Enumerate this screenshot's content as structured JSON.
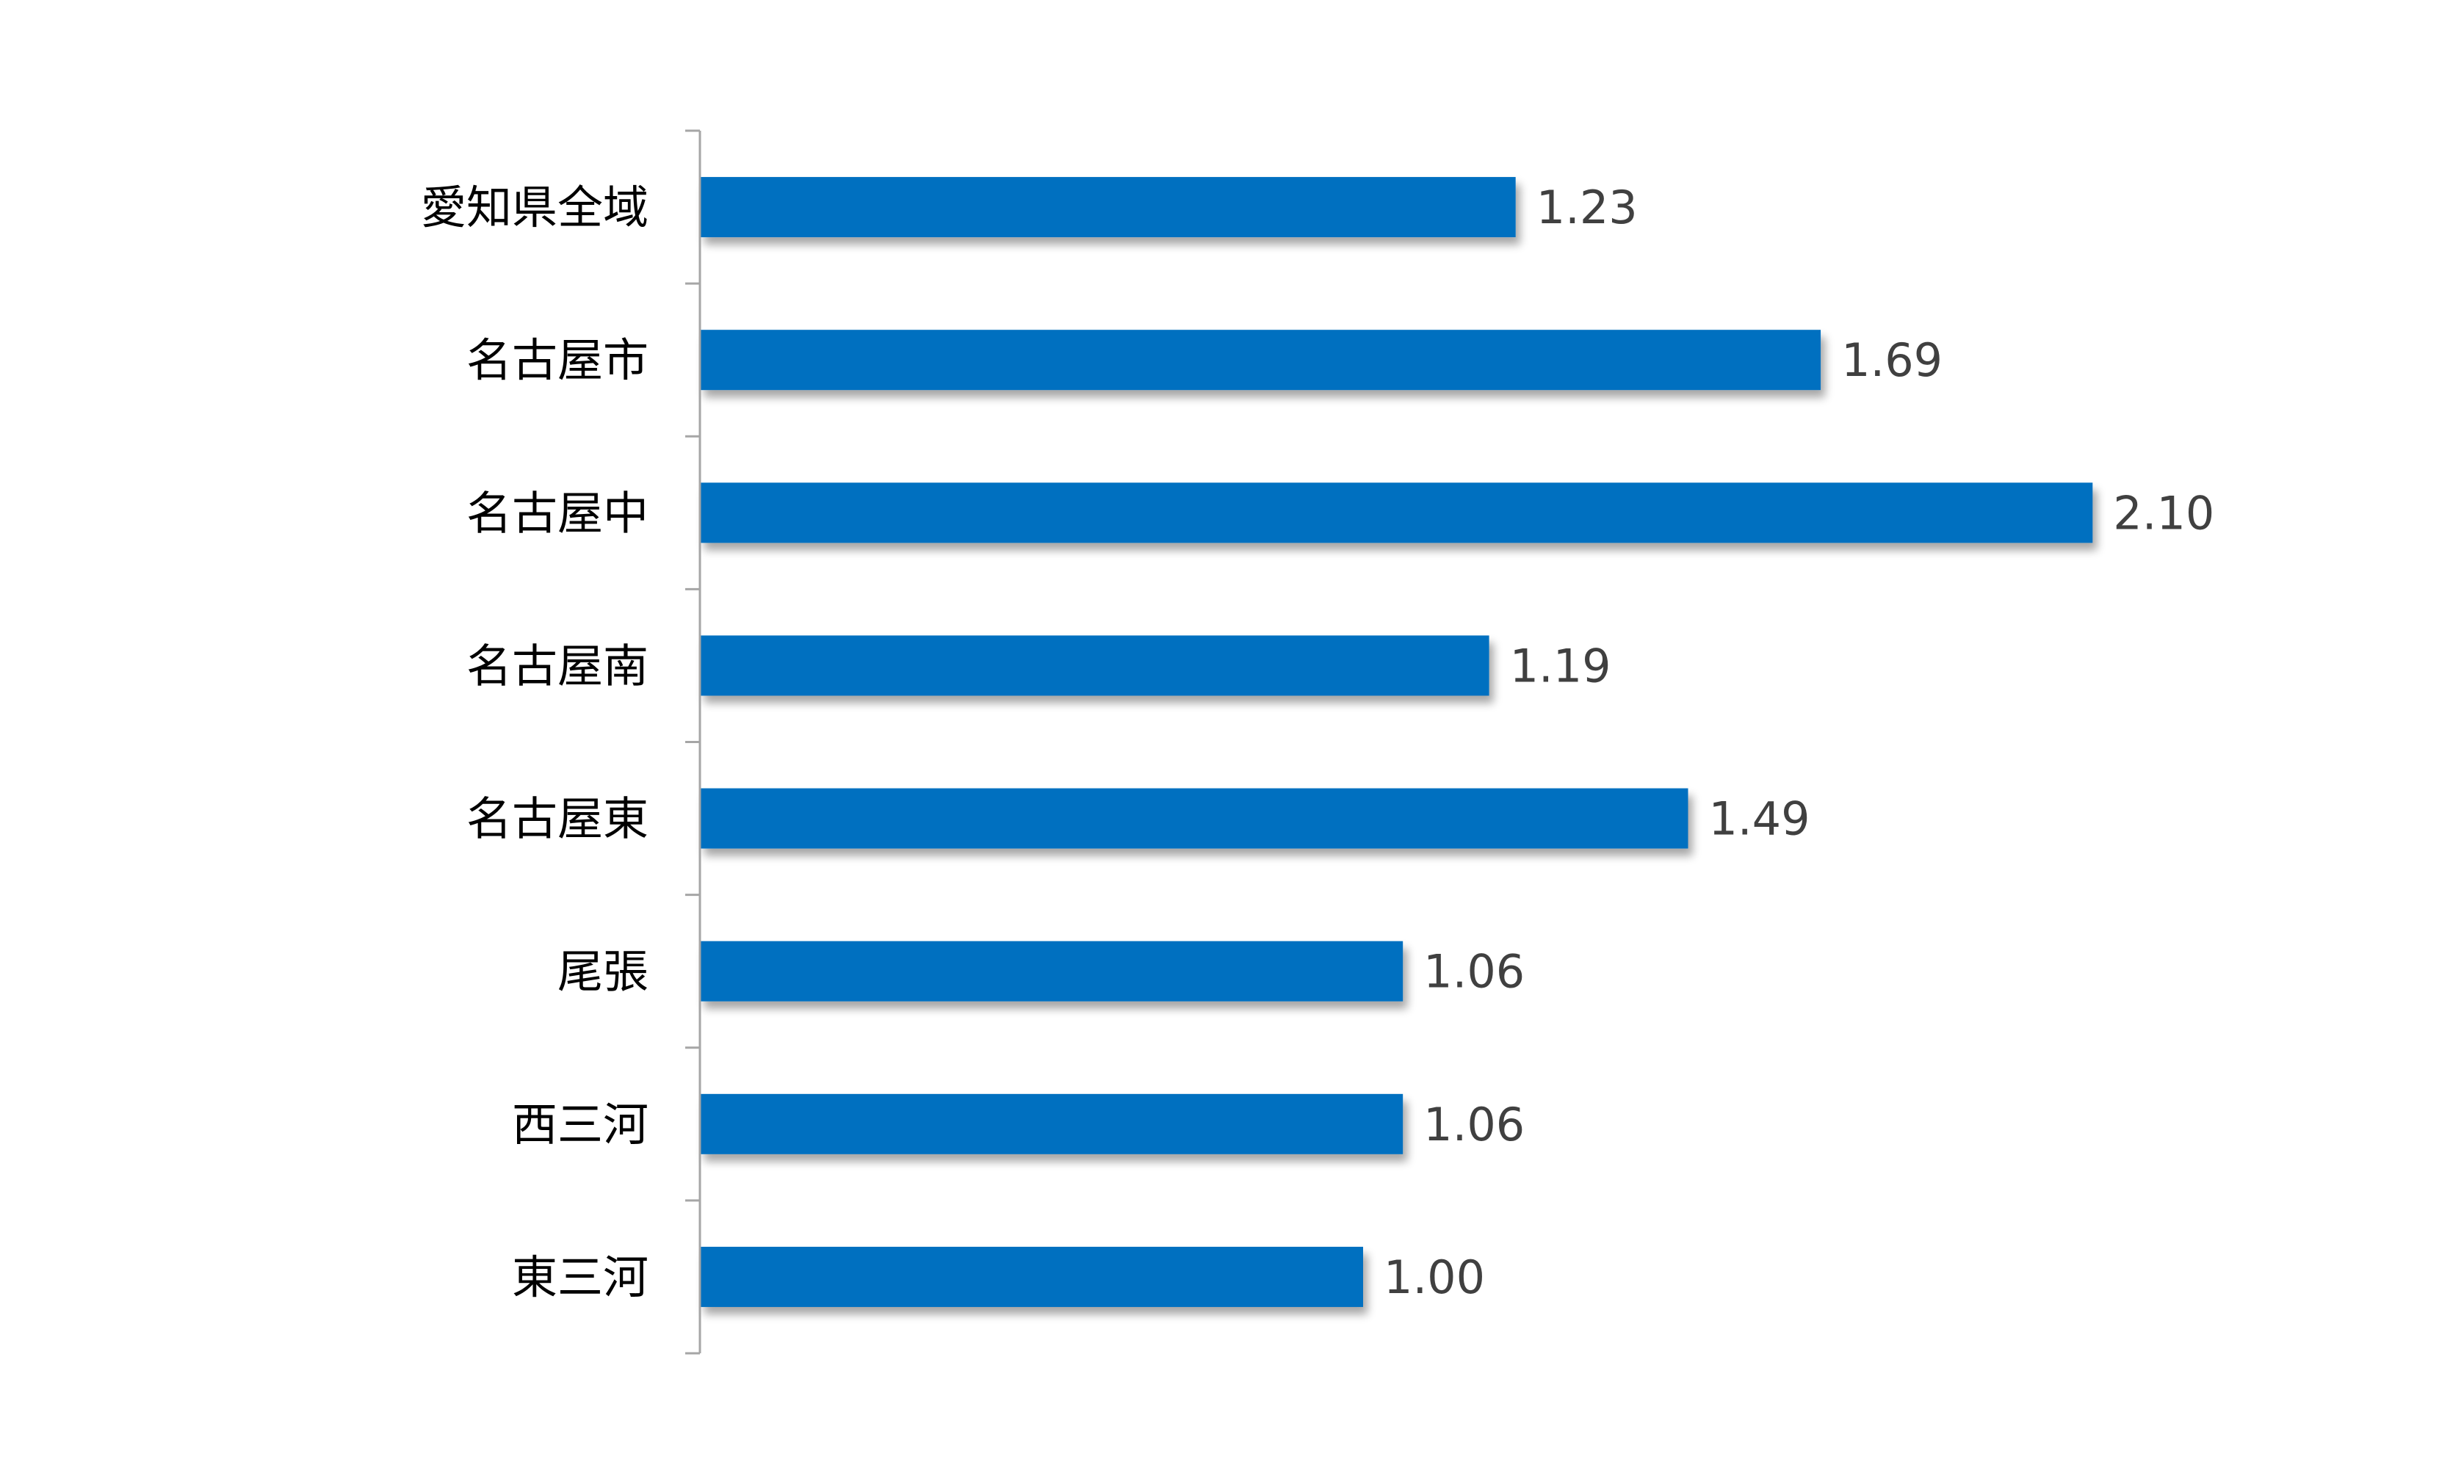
{
  "chart_data": {
    "type": "bar",
    "orientation": "horizontal",
    "title": "",
    "xlabel": "",
    "ylabel": "",
    "categories": [
      "愛知県全域",
      "名古屋市",
      "名古屋中",
      "名古屋南",
      "名古屋東",
      "尾張",
      "西三河",
      "東三河"
    ],
    "values": [
      1.23,
      1.69,
      2.1,
      1.19,
      1.49,
      1.06,
      1.06,
      1.0
    ],
    "value_labels": [
      "1.23",
      "1.69",
      "2.10",
      "1.19",
      "1.49",
      "1.06",
      "1.06",
      "1.00"
    ],
    "xlim": [
      0,
      2.5
    ],
    "grid": false,
    "legend": "none",
    "bar_color": "#0070C0",
    "axis_color": "#A6A6A6",
    "label_color": "#404040"
  }
}
